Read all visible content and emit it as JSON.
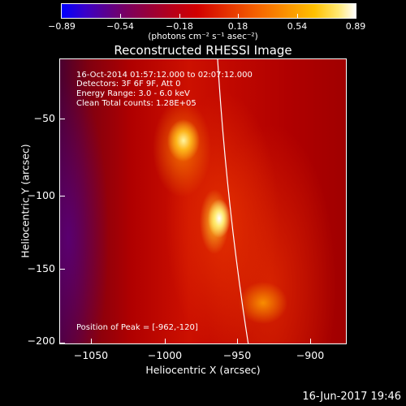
{
  "colorbar": {
    "tick_labels": [
      "−0.89",
      "−0.54",
      "−0.18",
      "0.18",
      "0.54",
      "0.89"
    ],
    "units": "(photons cm⁻² s⁻¹ asec⁻²)"
  },
  "title": "Reconstructed RHESSI Image",
  "info": {
    "time_range": "16-Oct-2014 01:57:12.000 to 02:07:12.000",
    "detectors": "Detectors: 3F 6F 9F, Att 0",
    "energy": "Energy Range: 3.0 - 6.0 keV",
    "clean": "Clean    Total counts: 1.28E+05"
  },
  "peak": "Position of Peak = [-962,-120]",
  "axes": {
    "y_label": "Heliocentric Y (arcsec)",
    "x_label": "Heliocentric X (arcsec)",
    "y_ticks": [
      "−50",
      "−100",
      "−150",
      "−200"
    ],
    "x_ticks": [
      "−1050",
      "−1000",
      "−950",
      "−900"
    ]
  },
  "datestamp": "16-Jun-2017 19:46"
}
